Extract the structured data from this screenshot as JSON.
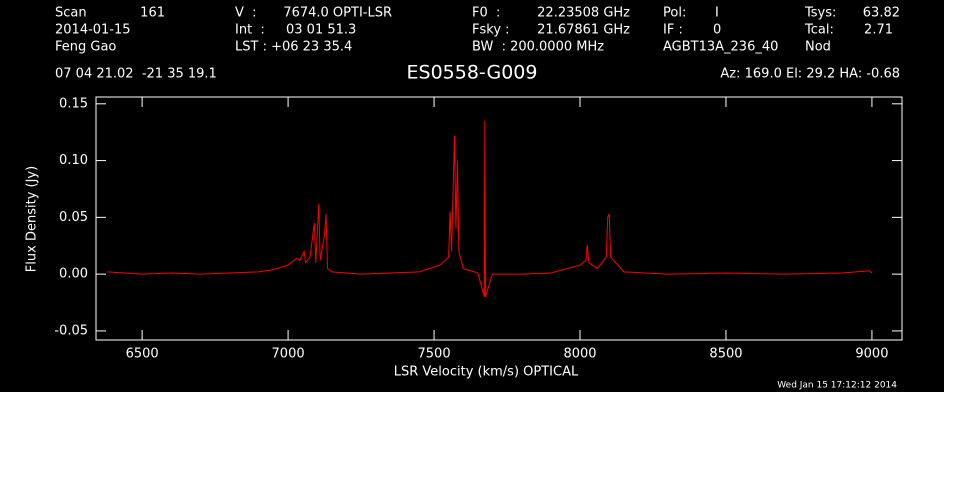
{
  "header": [
    "Scan",
    "161",
    "2014-01-15",
    "Feng Gao",
    "V  :",
    "7674.0 OPTI-LSR",
    "Int  :",
    "03 01 51.3",
    "LST : +06 23 35.4",
    "F0  :",
    "22.23508 GHz",
    "Fsky :",
    "21.67861 GHz",
    "BW  : 200.0000 MHz",
    "Pol:",
    "I",
    "IF :",
    "0",
    "AGBT13A_236_40",
    "Tsys:",
    "63.82",
    "Tcal:",
    "2.71",
    "Nod",
    "07 04 21.02  -21 35 19.1",
    "Az: 169.0  El: 29.2  HA: -0.68",
    "Wed Jan 15 17:12:12 2014"
  ],
  "chart_data": {
    "type": "line",
    "title": "ES0558-G009",
    "x_label": "LSR Velocity (km/s) OPTICAL",
    "y_label": "Flux Density (Jy)",
    "x": [
      6380,
      6500,
      6600,
      6700,
      6800,
      6900,
      6950,
      7000,
      7030,
      7040,
      7055,
      7060,
      7075,
      7090,
      7095,
      7105,
      7110,
      7125,
      7130,
      7135,
      7150,
      7250,
      7350,
      7450,
      7520,
      7550,
      7555,
      7560,
      7570,
      7575,
      7580,
      7585,
      7600,
      7650,
      7672,
      7674,
      7676,
      7700,
      7800,
      7900,
      8000,
      8020,
      8025,
      8030,
      8060,
      8090,
      8095,
      8100,
      8105,
      8150,
      8300,
      8500,
      8700,
      8900,
      8990,
      9000
    ],
    "series": [
      {
        "name": "Flux",
        "color": "#ff0000",
        "values": [
          0.002,
          0.0,
          0.001,
          0.0,
          0.001,
          0.002,
          0.004,
          0.008,
          0.014,
          0.012,
          0.02,
          0.01,
          0.015,
          0.045,
          0.01,
          0.062,
          0.012,
          0.035,
          0.053,
          0.005,
          0.002,
          0.0,
          0.001,
          0.002,
          0.008,
          0.015,
          0.055,
          0.02,
          0.122,
          0.04,
          0.1,
          0.02,
          0.005,
          0.001,
          -0.02,
          0.135,
          -0.02,
          0.0,
          0.0,
          0.001,
          0.008,
          0.012,
          0.026,
          0.01,
          0.005,
          0.015,
          0.05,
          0.053,
          0.015,
          0.002,
          0.0,
          0.001,
          0.0,
          0.001,
          0.003,
          0.001
        ]
      }
    ],
    "xlim": [
      6342,
      9103
    ],
    "ylim": [
      -0.058,
      0.156
    ],
    "xticks": [
      6500,
      7000,
      7500,
      8000,
      8500,
      9000
    ],
    "yticks": [
      0.15,
      {
        "value": 0.1,
        "label": "0.10"
      },
      0.05,
      {
        "value": 0,
        "label": "0.00"
      },
      -0.05
    ],
    "background": "#000000",
    "axis_color": "#ffffff"
  }
}
